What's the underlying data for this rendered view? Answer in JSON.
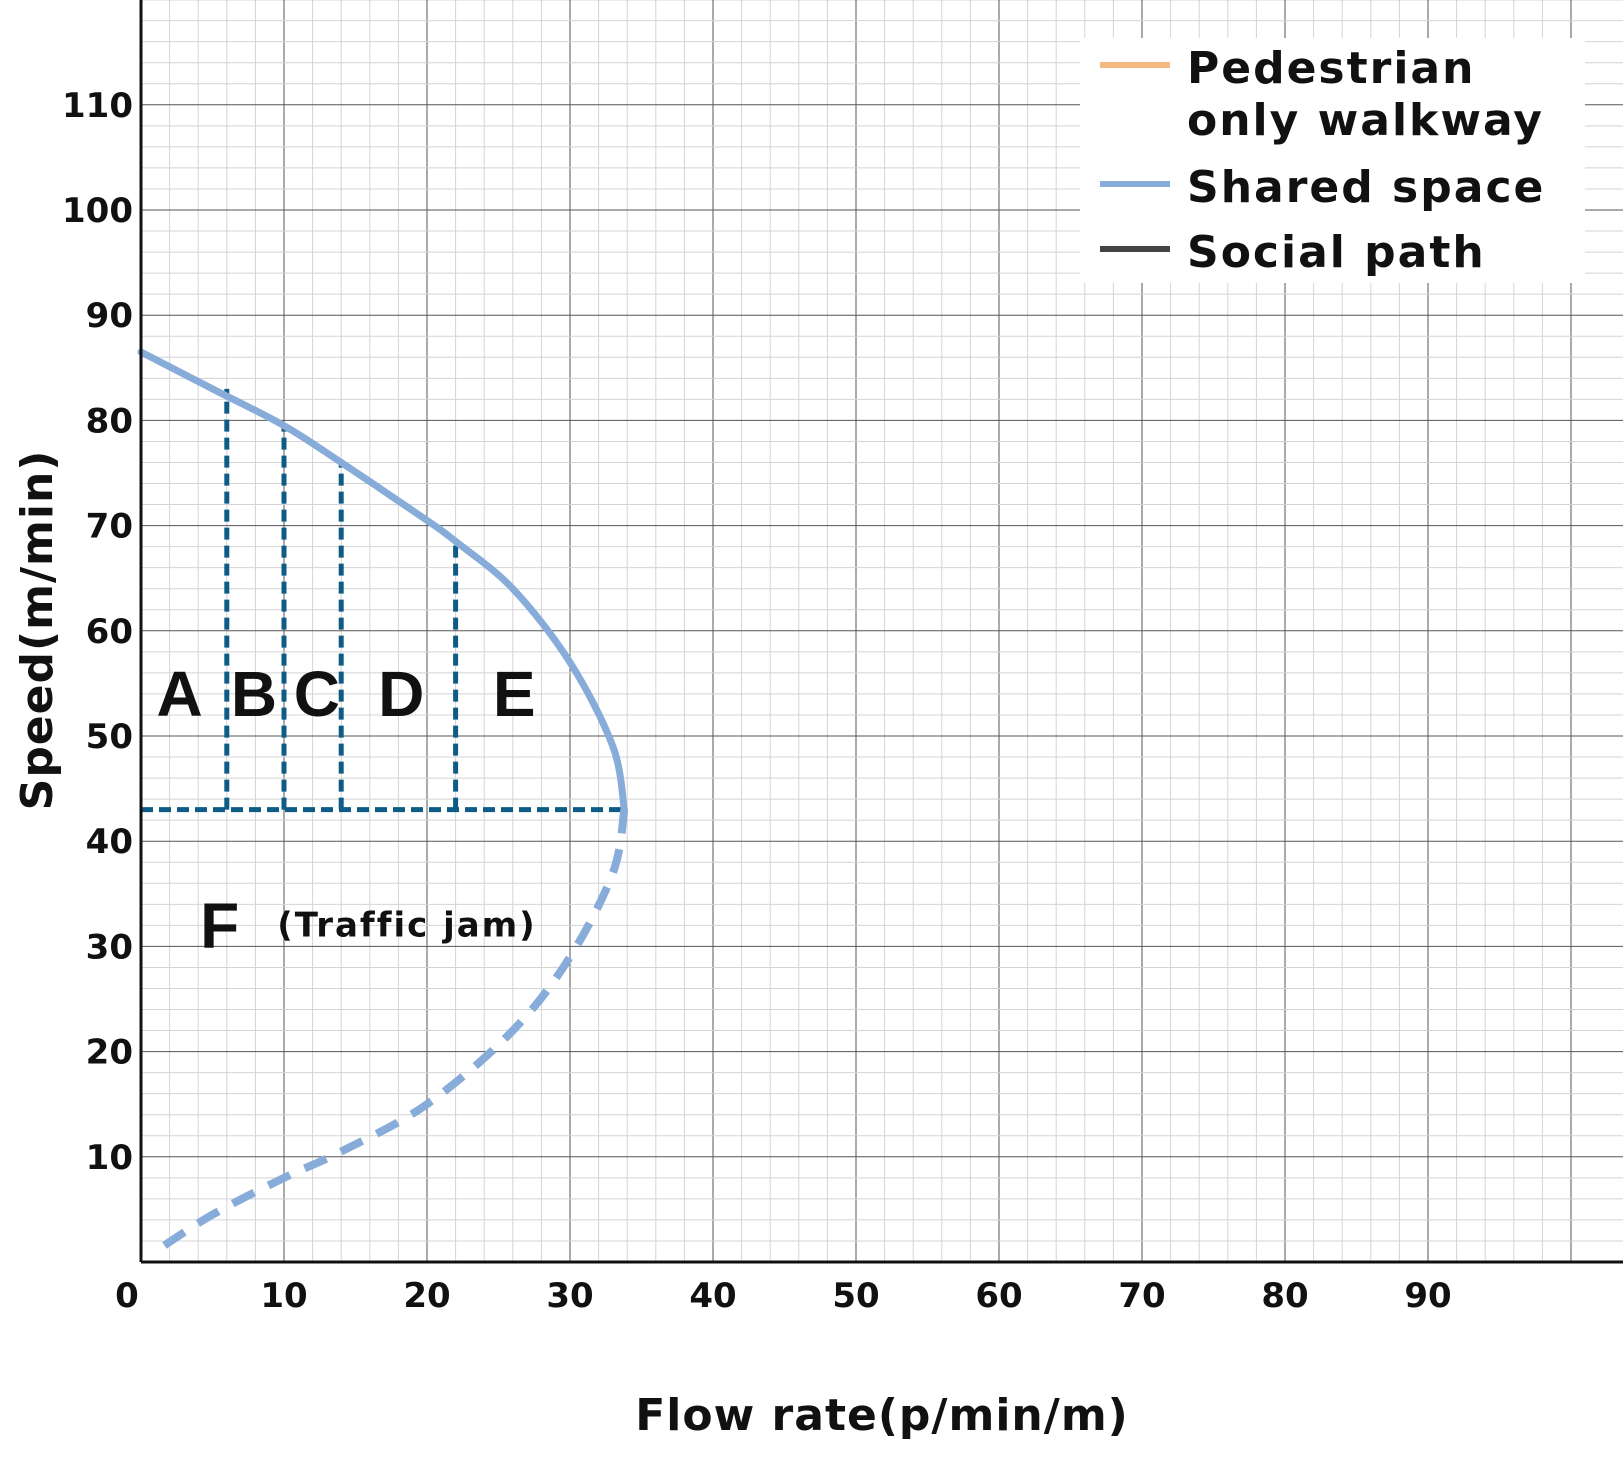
{
  "chart_data": {
    "type": "line",
    "xlabel": "Flow rate(p/min/m)",
    "ylabel": "Speed(m/min)",
    "xlim": [
      0,
      100
    ],
    "ylim": [
      0,
      120
    ],
    "x_ticks": [
      0,
      10,
      20,
      30,
      40,
      50,
      60,
      70,
      80,
      90
    ],
    "y_ticks": [
      10,
      20,
      30,
      40,
      50,
      60,
      70,
      80,
      90,
      100,
      110
    ],
    "grid": true,
    "legend_position": "top-right",
    "series": [
      {
        "name": "Pedestrian only walkway",
        "color": "#f5b982",
        "points": []
      },
      {
        "name": "Shared space",
        "color": "#88acd9",
        "points": [
          [
            0,
            86.5
          ],
          [
            5,
            83
          ],
          [
            10,
            79.5
          ],
          [
            14,
            76
          ],
          [
            20,
            70.5
          ],
          [
            22,
            68.5
          ],
          [
            26,
            64
          ],
          [
            30,
            57
          ],
          [
            33,
            49
          ],
          [
            33.8,
            43
          ]
        ],
        "dashed_points": [
          [
            33.8,
            43
          ],
          [
            33,
            37
          ],
          [
            30,
            29
          ],
          [
            26,
            22
          ],
          [
            20,
            15
          ],
          [
            14,
            10.5
          ],
          [
            10,
            8
          ],
          [
            5,
            4.5
          ],
          [
            1,
            1
          ]
        ]
      },
      {
        "name": "Social path",
        "color": "#444444",
        "points": []
      }
    ],
    "los_boundaries": {
      "color": "#0e5c85",
      "vertical": [
        [
          6,
          83
        ],
        [
          10,
          79.5
        ],
        [
          14,
          76
        ],
        [
          22,
          68.5
        ]
      ],
      "horizontal_y": 43,
      "horizontal_x_end": 33.8
    },
    "annotations": [
      {
        "text": "A",
        "x": 2.7,
        "y": 54
      },
      {
        "text": "B",
        "x": 7.9,
        "y": 54
      },
      {
        "text": "C",
        "x": 12.3,
        "y": 54
      },
      {
        "text": "D",
        "x": 18.2,
        "y": 54
      },
      {
        "text": "E",
        "x": 26.1,
        "y": 54
      },
      {
        "text": "F",
        "x": 5.5,
        "y": 32
      },
      {
        "text": "(Traffic jam)",
        "x": 18.6,
        "y": 32
      }
    ]
  }
}
